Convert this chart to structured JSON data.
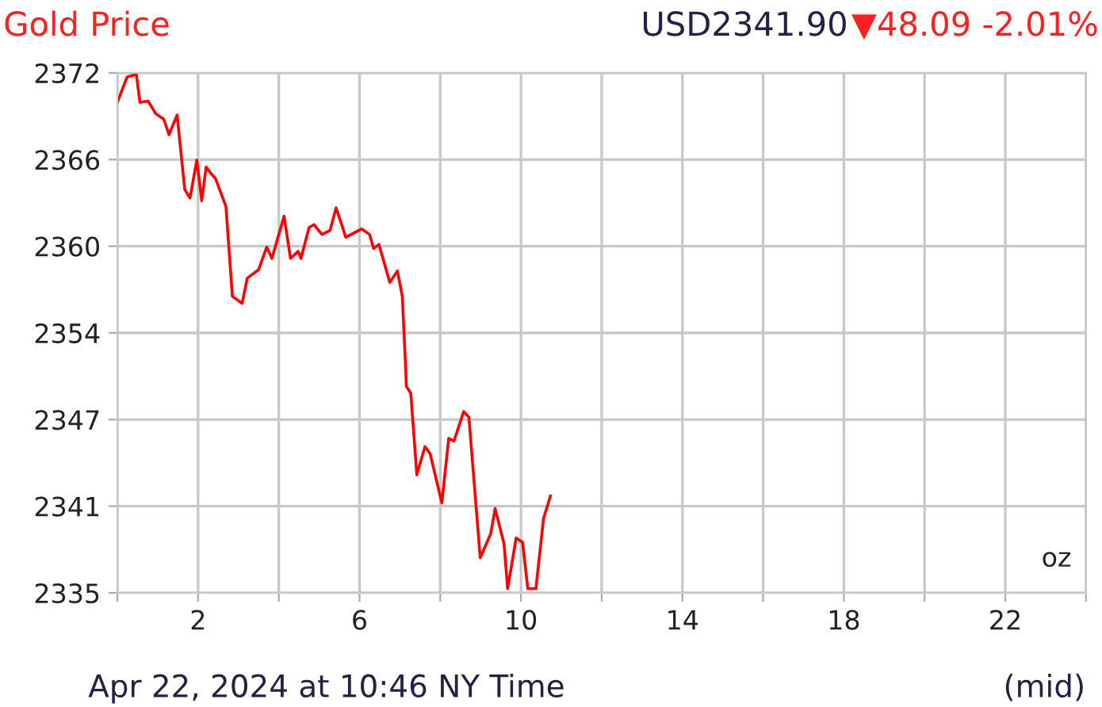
{
  "chart_data": {
    "type": "line",
    "title": "Gold Price",
    "annotations": [
      "USD2341.90",
      "▼48.09 -2.01%",
      "oz",
      "Apr 22, 2024 at 10:46 NY Time",
      "(mid)"
    ],
    "x": [
      0.0,
      0.24,
      0.47,
      0.56,
      0.76,
      0.95,
      1.15,
      1.28,
      1.48,
      1.67,
      1.8,
      1.97,
      2.09,
      2.2,
      2.33,
      2.43,
      2.69,
      2.85,
      3.09,
      3.22,
      3.5,
      3.7,
      3.83,
      4.13,
      4.29,
      4.48,
      4.55,
      4.75,
      4.87,
      5.07,
      5.27,
      5.42,
      5.66,
      6.05,
      6.25,
      6.35,
      6.48,
      6.75,
      6.94,
      7.06,
      7.14,
      7.16,
      7.27,
      7.42,
      7.62,
      7.75,
      8.04,
      8.21,
      8.34,
      8.58,
      8.71,
      8.99,
      9.25,
      9.36,
      9.58,
      9.67,
      9.88,
      10.04,
      10.17,
      10.37,
      10.56,
      10.73
    ],
    "series": [
      {
        "color": "#ff0000",
        "values": [
          2369.9,
          2371.7,
          2371.9,
          2369.9,
          2370.0,
          2369.1,
          2368.7,
          2367.6,
          2369.0,
          2363.7,
          2363.1,
          2365.8,
          2362.9,
          2365.3,
          2364.8,
          2364.5,
          2362.5,
          2356.1,
          2355.6,
          2357.4,
          2358.0,
          2359.6,
          2358.8,
          2361.8,
          2358.8,
          2359.3,
          2358.8,
          2361.0,
          2361.2,
          2360.5,
          2360.8,
          2362.4,
          2360.3,
          2360.9,
          2360.5,
          2359.5,
          2359.8,
          2357.1,
          2357.9,
          2356.1,
          2351.2,
          2349.7,
          2349.2,
          2343.4,
          2345.4,
          2344.9,
          2341.4,
          2346.0,
          2345.8,
          2347.9,
          2347.5,
          2337.5,
          2339.2,
          2341.0,
          2338.5,
          2335.3,
          2338.9,
          2338.6,
          2335.3,
          2335.3,
          2340.3,
          2341.9
        ]
      }
    ],
    "xlim": [
      0,
      24
    ],
    "xticks": [
      {
        "value": 0,
        "label": null
      },
      2,
      {
        "value": 4,
        "label": null
      },
      6,
      {
        "value": 8,
        "label": null
      },
      10,
      {
        "value": 12,
        "label": null
      },
      14,
      {
        "value": 16,
        "label": null
      },
      18,
      {
        "value": 20,
        "label": null
      },
      22,
      {
        "value": 24,
        "label": null
      }
    ],
    "ylim": [
      2335,
      2372
    ],
    "yticks": [
      2335,
      {
        "value": 2341.17,
        "label": "2341"
      },
      {
        "value": 2347.33,
        "label": "2347"
      },
      {
        "value": 2353.5,
        "label": "2354"
      },
      {
        "value": 2359.67,
        "label": "2360"
      },
      {
        "value": 2365.83,
        "label": "2366"
      },
      2372
    ],
    "grid": true,
    "legend": false,
    "marker": "none",
    "line_style": "solid"
  }
}
